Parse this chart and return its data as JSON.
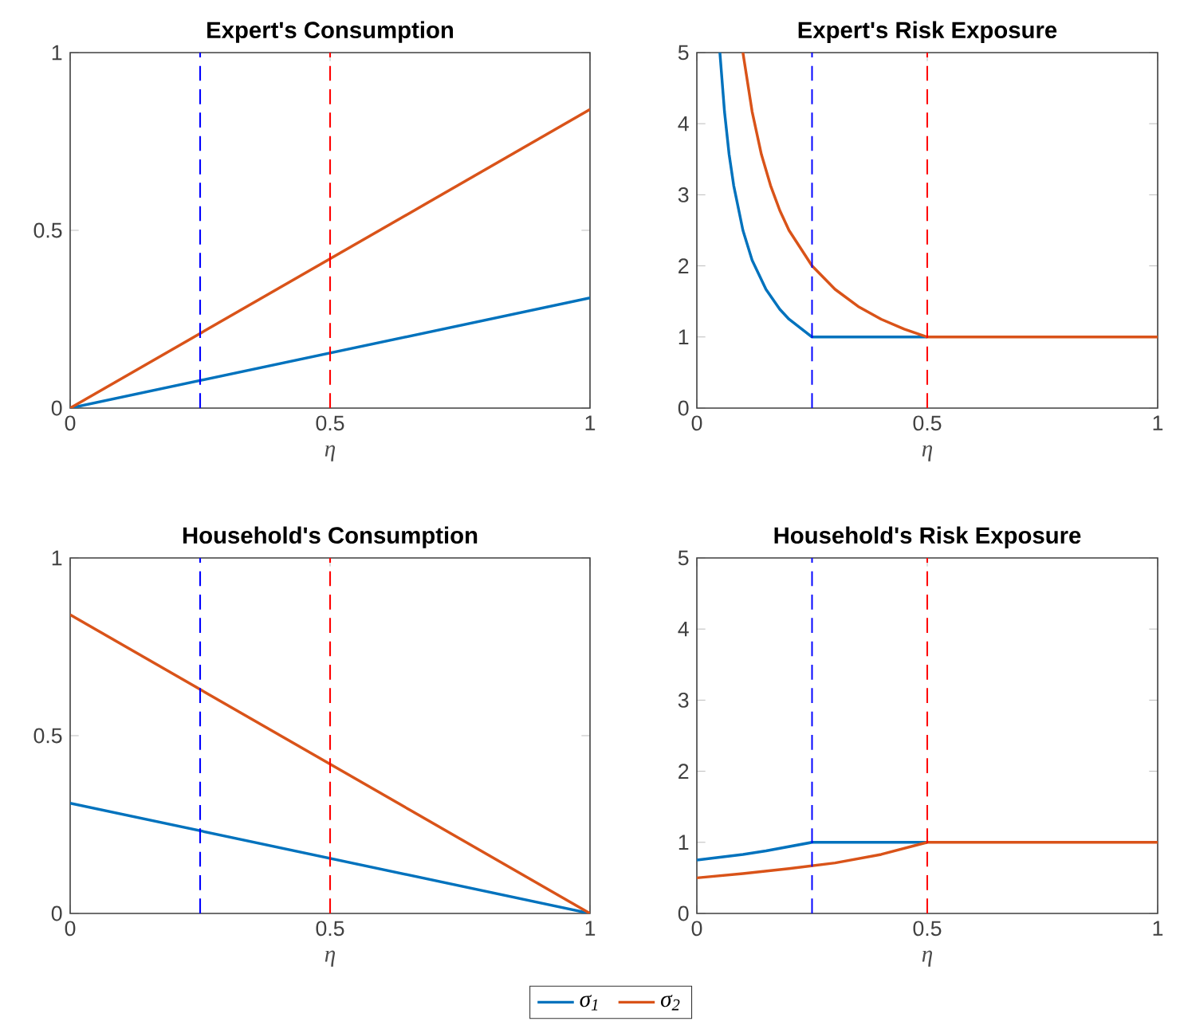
{
  "chart_data": [
    {
      "type": "line",
      "title": "Expert's Consumption",
      "xlabel": "η",
      "xlim": [
        0,
        1
      ],
      "ylim": [
        0,
        1
      ],
      "xticks": [
        0,
        0.5,
        1
      ],
      "yticks": [
        0,
        0.5,
        1
      ],
      "line_style": "solid",
      "series": [
        {
          "color": "#0072bd",
          "x": [
            0,
            1
          ],
          "values": [
            0,
            0.31
          ]
        },
        {
          "color": "#d95319",
          "x": [
            0,
            1
          ],
          "values": [
            0,
            0.84
          ]
        }
      ],
      "ref_lines": [
        {
          "axis": "x",
          "value": 0.25,
          "color": "#0000ff",
          "line_style": "dashed"
        },
        {
          "axis": "x",
          "value": 0.5,
          "color": "#ff0000",
          "line_style": "dashed"
        }
      ]
    },
    {
      "type": "line",
      "title": "Expert's Risk Exposure",
      "xlabel": "η",
      "xlim": [
        0,
        1
      ],
      "ylim": [
        0,
        5
      ],
      "xticks": [
        0,
        0.5,
        1
      ],
      "yticks": [
        0,
        1,
        2,
        3,
        4,
        5
      ],
      "line_style": "solid",
      "series": [
        {
          "color": "#0072bd",
          "x": [
            0.05,
            0.06,
            0.07,
            0.08,
            0.1,
            0.12,
            0.15,
            0.18,
            0.2,
            0.25,
            0.5
          ],
          "values": [
            5,
            4.17,
            3.57,
            3.13,
            2.5,
            2.08,
            1.67,
            1.39,
            1.25,
            1,
            1
          ]
        },
        {
          "color": "#d95319",
          "x": [
            0.1,
            0.12,
            0.14,
            0.16,
            0.18,
            0.2,
            0.25,
            0.3,
            0.35,
            0.4,
            0.45,
            0.5,
            1
          ],
          "values": [
            5,
            4.17,
            3.57,
            3.13,
            2.78,
            2.5,
            2,
            1.67,
            1.43,
            1.25,
            1.11,
            1,
            1
          ]
        }
      ],
      "ref_lines": [
        {
          "axis": "x",
          "value": 0.25,
          "color": "#0000ff",
          "line_style": "dashed"
        },
        {
          "axis": "x",
          "value": 0.5,
          "color": "#ff0000",
          "line_style": "dashed"
        }
      ]
    },
    {
      "type": "line",
      "title": "Household's Consumption",
      "xlabel": "η",
      "xlim": [
        0,
        1
      ],
      "ylim": [
        0,
        1
      ],
      "xticks": [
        0,
        0.5,
        1
      ],
      "yticks": [
        0,
        0.5,
        1
      ],
      "line_style": "solid",
      "legend": "bottom",
      "series": [
        {
          "name": "σ$_{1}$",
          "color": "#0072bd",
          "x": [
            0,
            1
          ],
          "values": [
            0.31,
            0
          ]
        },
        {
          "name": "σ$_{2}$",
          "color": "#d95319",
          "x": [
            0,
            1
          ],
          "values": [
            0.84,
            0
          ]
        }
      ],
      "ref_lines": [
        {
          "axis": "x",
          "value": 0.25,
          "color": "#0000ff",
          "line_style": "dashed"
        },
        {
          "axis": "x",
          "value": 0.5,
          "color": "#ff0000",
          "line_style": "dashed"
        }
      ]
    },
    {
      "type": "line",
      "title": "Household's Risk Exposure",
      "xlabel": "η",
      "xlim": [
        0,
        1
      ],
      "ylim": [
        0,
        5
      ],
      "xticks": [
        0,
        0.5,
        1
      ],
      "yticks": [
        0,
        1,
        2,
        3,
        4,
        5
      ],
      "line_style": "solid",
      "series": [
        {
          "color": "#0072bd",
          "x": [
            0,
            0.05,
            0.1,
            0.15,
            0.2,
            0.25,
            0.5
          ],
          "values": [
            0.75,
            0.79,
            0.83,
            0.88,
            0.94,
            1,
            1
          ]
        },
        {
          "color": "#d95319",
          "x": [
            0,
            0.1,
            0.2,
            0.25,
            0.3,
            0.4,
            0.5,
            1
          ],
          "values": [
            0.5,
            0.56,
            0.63,
            0.67,
            0.71,
            0.83,
            1,
            1
          ]
        }
      ],
      "ref_lines": [
        {
          "axis": "x",
          "value": 0.25,
          "color": "#0000ff",
          "line_style": "dashed"
        },
        {
          "axis": "x",
          "value": 0.5,
          "color": "#ff0000",
          "line_style": "dashed"
        }
      ]
    }
  ]
}
